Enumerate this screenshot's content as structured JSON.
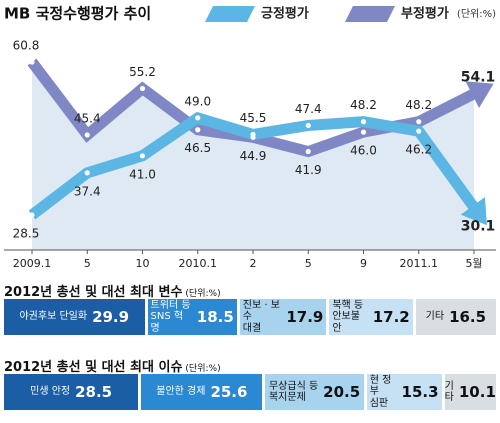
{
  "chart_data": [
    {
      "type": "line",
      "title": "MB 국정수행평가 추이",
      "unit": "(단위:%)",
      "categories": [
        "2009.1",
        "5",
        "10",
        "2010.1",
        "2",
        "5",
        "9",
        "2011.1",
        "5월"
      ],
      "series": [
        {
          "name": "긍정평가",
          "color": "#5bb6e3",
          "values": [
            28.5,
            37.4,
            41.0,
            49.0,
            45.5,
            47.4,
            48.2,
            46.2,
            30.1
          ],
          "value_labels": [
            "28.5",
            "37.4",
            "41.0",
            "49.0",
            "45.5",
            "47.4",
            "48.2",
            "46.2",
            "30.1"
          ]
        },
        {
          "name": "부정평가",
          "color": "#7f88c4",
          "values": [
            60.8,
            45.4,
            55.2,
            46.5,
            44.9,
            41.9,
            46.0,
            48.2,
            54.1
          ],
          "value_labels": [
            "60.8",
            "45.4",
            "55.2",
            "46.5",
            "44.9",
            "41.9",
            "46.0",
            "48.2",
            "54.1"
          ]
        }
      ]
    },
    {
      "type": "stacked_bar",
      "title": "2012년 총선 및 대선 최대 변수",
      "unit": "(단위:%)",
      "categories": [
        "야권후보 단일화",
        "트위터 등\nSNS 혁명",
        "진보 · 보수\n대결",
        "북핵 등\n안보불안",
        "기타"
      ],
      "values": [
        29.9,
        18.5,
        17.9,
        17.2,
        16.5
      ],
      "colors": [
        "#1b5ea6",
        "#2b88d2",
        "#a8d3ef",
        "#c6e1f4",
        "#d9dee3"
      ]
    },
    {
      "type": "stacked_bar",
      "title": "2012년 총선 및 대선 최대 이슈",
      "unit": "(단위:%)",
      "categories": [
        "민생 안정",
        "불안한 경제",
        "무상급식 등\n복지문제",
        "현 정부\n심판",
        "기타"
      ],
      "values": [
        28.5,
        25.6,
        20.5,
        15.3,
        10.1
      ],
      "colors": [
        "#1b5ea6",
        "#2b88d2",
        "#a8d3ef",
        "#c6e1f4",
        "#d9dee3"
      ]
    }
  ]
}
